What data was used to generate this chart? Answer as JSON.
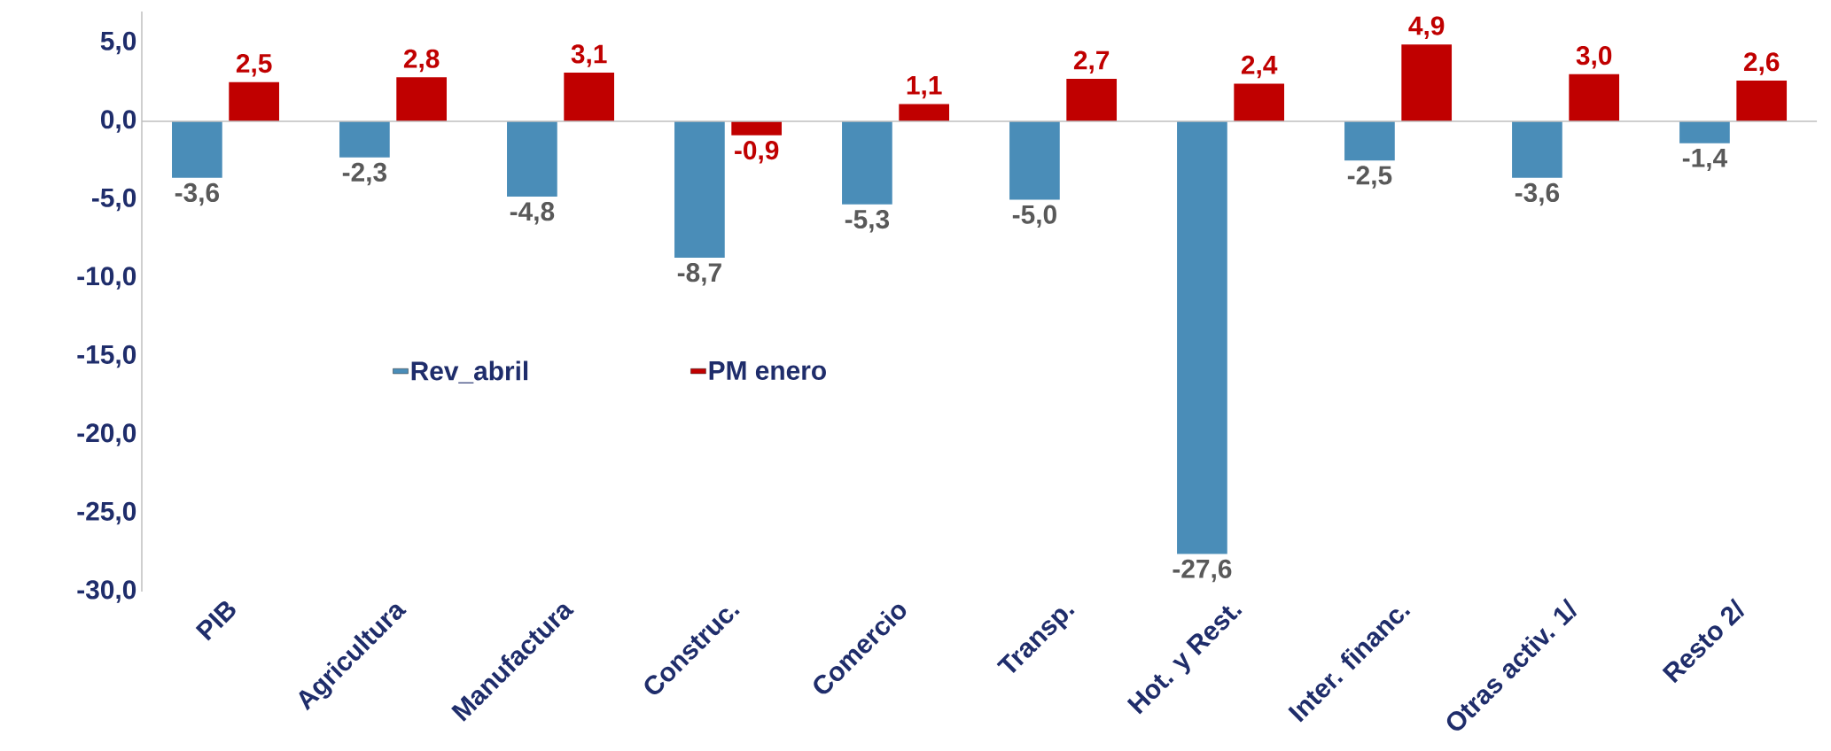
{
  "chart_data": {
    "type": "bar",
    "categories": [
      "PIB",
      "Agricultura",
      "Manufactura",
      "Construc.",
      "Comercio",
      "Transp.",
      "Hot. y Rest.",
      "Inter. financ.",
      "Otras activ. 1/",
      "Resto 2/"
    ],
    "series": [
      {
        "name": "Rev_abril",
        "color": "#4a8db8",
        "values": [
          -3.6,
          -2.3,
          -4.8,
          -8.7,
          -5.3,
          -5.0,
          -27.6,
          -2.5,
          -3.6,
          -1.4
        ],
        "value_labels": [
          "-3,6",
          "-2,3",
          "-4,8",
          "-8,7",
          "-5,3",
          "-5,0",
          "-27,6",
          "-2,5",
          "-3,6",
          "-1,4"
        ]
      },
      {
        "name": "PM enero",
        "color": "#c00000",
        "values": [
          2.5,
          2.8,
          3.1,
          -0.9,
          1.1,
          2.7,
          2.4,
          4.9,
          3.0,
          2.6
        ],
        "value_labels": [
          "2,5",
          "2,8",
          "3,1",
          "-0,9",
          "1,1",
          "2,7",
          "2,4",
          "4,9",
          "3,0",
          "2,6"
        ]
      }
    ],
    "ylim": [
      -30,
      7
    ],
    "yticks": [
      {
        "value": 5,
        "label": "5,0"
      },
      {
        "value": 0,
        "label": "0,0"
      },
      {
        "value": -5,
        "label": "-5,0"
      },
      {
        "value": -10,
        "label": "-10,0"
      },
      {
        "value": -15,
        "label": "-15,0"
      },
      {
        "value": -20,
        "label": "-20,0"
      },
      {
        "value": -25,
        "label": "-25,0"
      },
      {
        "value": -30,
        "label": "-30,0"
      }
    ],
    "legend": "center left"
  }
}
